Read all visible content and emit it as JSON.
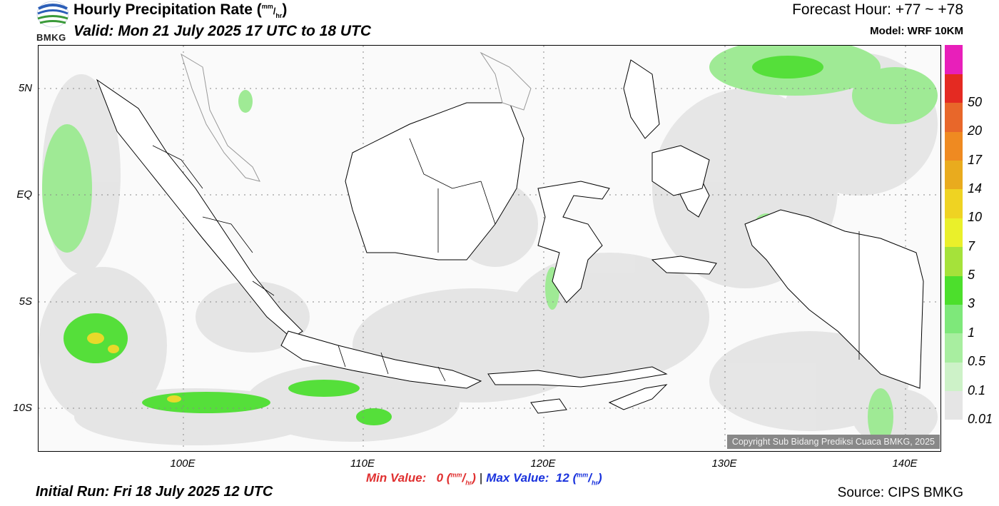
{
  "header": {
    "title_main": "Hourly Precipitation Rate (",
    "title_unit_top": "mm",
    "title_slash": "/",
    "title_unit_bottom": "hr",
    "title_close": ")",
    "valid": "Valid: Mon 21 July 2025 17 UTC to 18 UTC",
    "forecast_hour": "Forecast Hour: +77 ~ +78",
    "model": "Model: WRF 10KM",
    "logo_text": "BMKG"
  },
  "map": {
    "lat_labels": [
      "5N",
      "EQ",
      "5S",
      "10S"
    ],
    "lon_labels": [
      "100E",
      "110E",
      "120E",
      "130E",
      "140E"
    ],
    "copyright": "Copyright Sub Bidang Prediksi Cuaca BMKG, 2025",
    "grid": true
  },
  "colorbar": {
    "levels": [
      {
        "label": "0.01",
        "color": "#e5e5e5"
      },
      {
        "label": "0.1",
        "color": "#cdf2c8"
      },
      {
        "label": "0.5",
        "color": "#a8eea0"
      },
      {
        "label": "1",
        "color": "#7ee87a"
      },
      {
        "label": "3",
        "color": "#4cdf2c"
      },
      {
        "label": "5",
        "color": "#a5e23a"
      },
      {
        "label": "7",
        "color": "#eaf02a"
      },
      {
        "label": "10",
        "color": "#efd322"
      },
      {
        "label": "14",
        "color": "#e9ab1e"
      },
      {
        "label": "17",
        "color": "#ef8a21"
      },
      {
        "label": "20",
        "color": "#e8672a"
      },
      {
        "label": "50",
        "color": "#e42a22"
      },
      {
        "label": "",
        "color": "#e81fba"
      }
    ]
  },
  "footer": {
    "min_label": "Min Value:",
    "min_value": "0",
    "max_label": "Max Value:",
    "max_value": "12",
    "unit_top": "mm",
    "unit_bottom": "hr",
    "separator": "|",
    "initial_run": "Initial Run: Fri 18 July 2025 12 UTC",
    "source": "Source: CIPS BMKG"
  }
}
